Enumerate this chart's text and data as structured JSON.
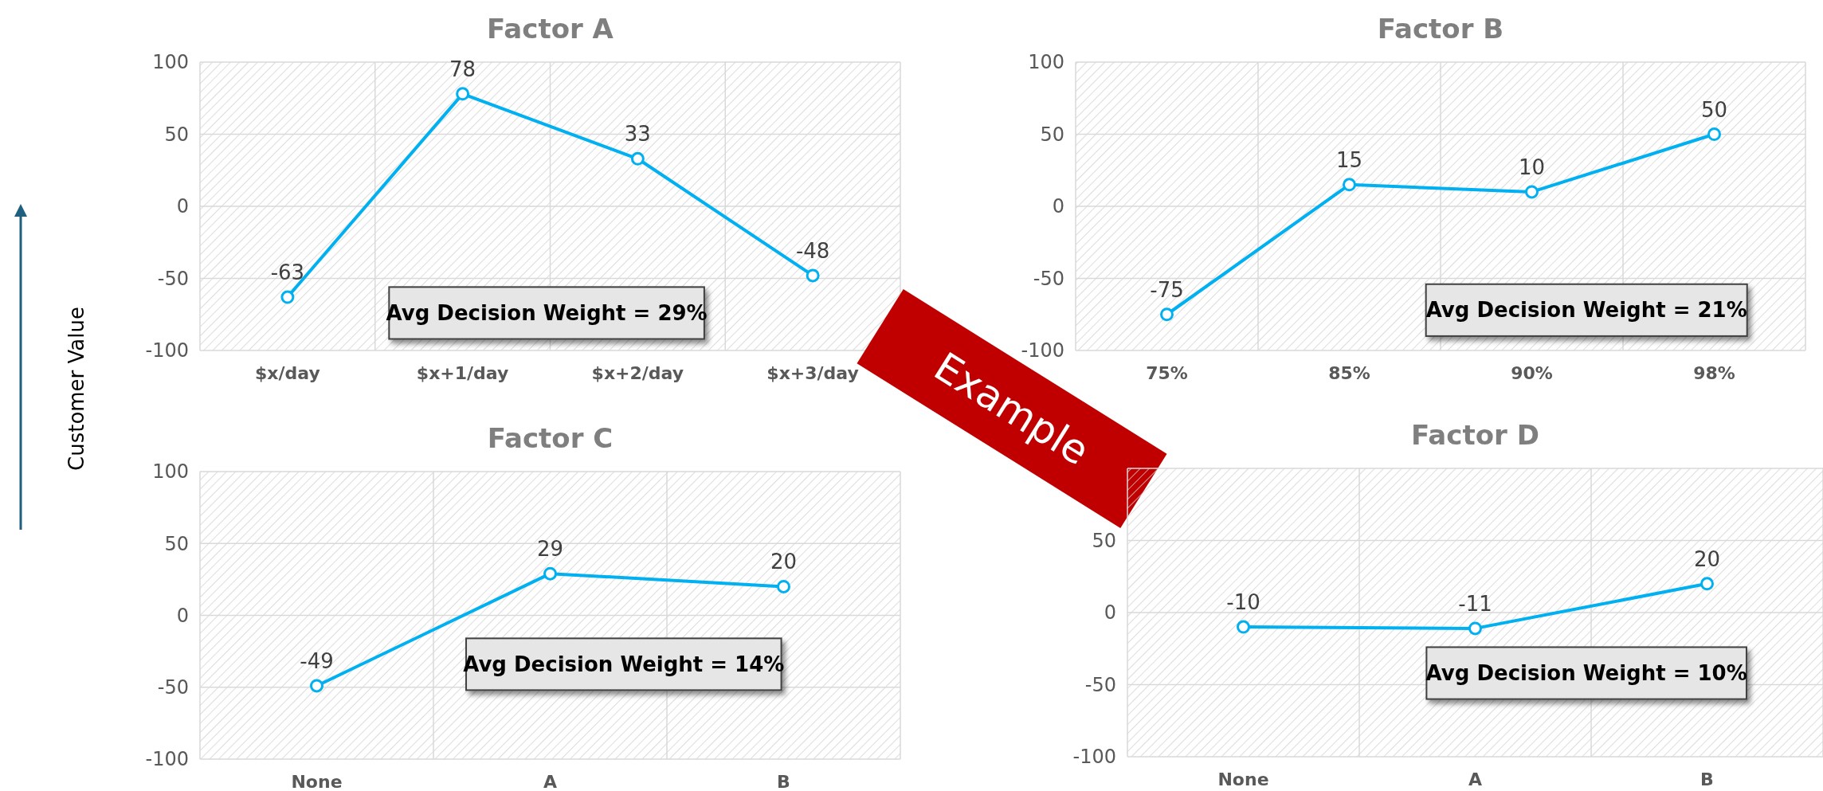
{
  "chart_data": [
    {
      "type": "line",
      "title": "Factor A",
      "ylabel": "Customer Value",
      "categories": [
        "$x/day",
        "$x+1/day",
        "$x+2/day",
        "$x+3/day"
      ],
      "series": [
        {
          "color": "#00b0f0",
          "values": [
            -63,
            78,
            33,
            -48
          ]
        }
      ],
      "ylim": [
        -100,
        100
      ],
      "yticks": [
        -100,
        -50,
        0,
        50,
        100
      ],
      "grid": true,
      "marker": "circle",
      "data_labels": true,
      "annotations": [
        "Avg Decision Weight = 29%"
      ]
    },
    {
      "type": "line",
      "title": "Factor B",
      "categories": [
        "75%",
        "85%",
        "90%",
        "98%"
      ],
      "series": [
        {
          "color": "#00b0f0",
          "values": [
            -75,
            15,
            10,
            50
          ]
        }
      ],
      "ylim": [
        -100,
        100
      ],
      "yticks": [
        -100,
        -50,
        0,
        50,
        100
      ],
      "grid": true,
      "marker": "circle",
      "data_labels": true,
      "annotations": [
        "Avg Decision Weight = 21%",
        "Example"
      ]
    },
    {
      "type": "line",
      "title": "Factor C",
      "categories": [
        "None",
        "A",
        "B"
      ],
      "series": [
        {
          "color": "#00b0f0",
          "values": [
            -49,
            29,
            20
          ]
        }
      ],
      "ylim": [
        -100,
        100
      ],
      "yticks": [
        -100,
        -50,
        0,
        50,
        100
      ],
      "grid": true,
      "marker": "circle",
      "data_labels": true,
      "annotations": [
        "Avg Decision Weight = 14%"
      ]
    },
    {
      "type": "line",
      "title": "Factor D",
      "categories": [
        "None",
        "A",
        "B"
      ],
      "series": [
        {
          "color": "#00b0f0",
          "values": [
            -10,
            -11,
            20
          ]
        }
      ],
      "ylim": [
        -100,
        100
      ],
      "yticks": [
        -100,
        -50,
        0,
        50,
        {
          "value": 100,
          "label": null
        }
      ],
      "grid": true,
      "marker": "circle",
      "data_labels": true,
      "annotations": [
        "Avg Decision Weight = 10%"
      ]
    }
  ]
}
